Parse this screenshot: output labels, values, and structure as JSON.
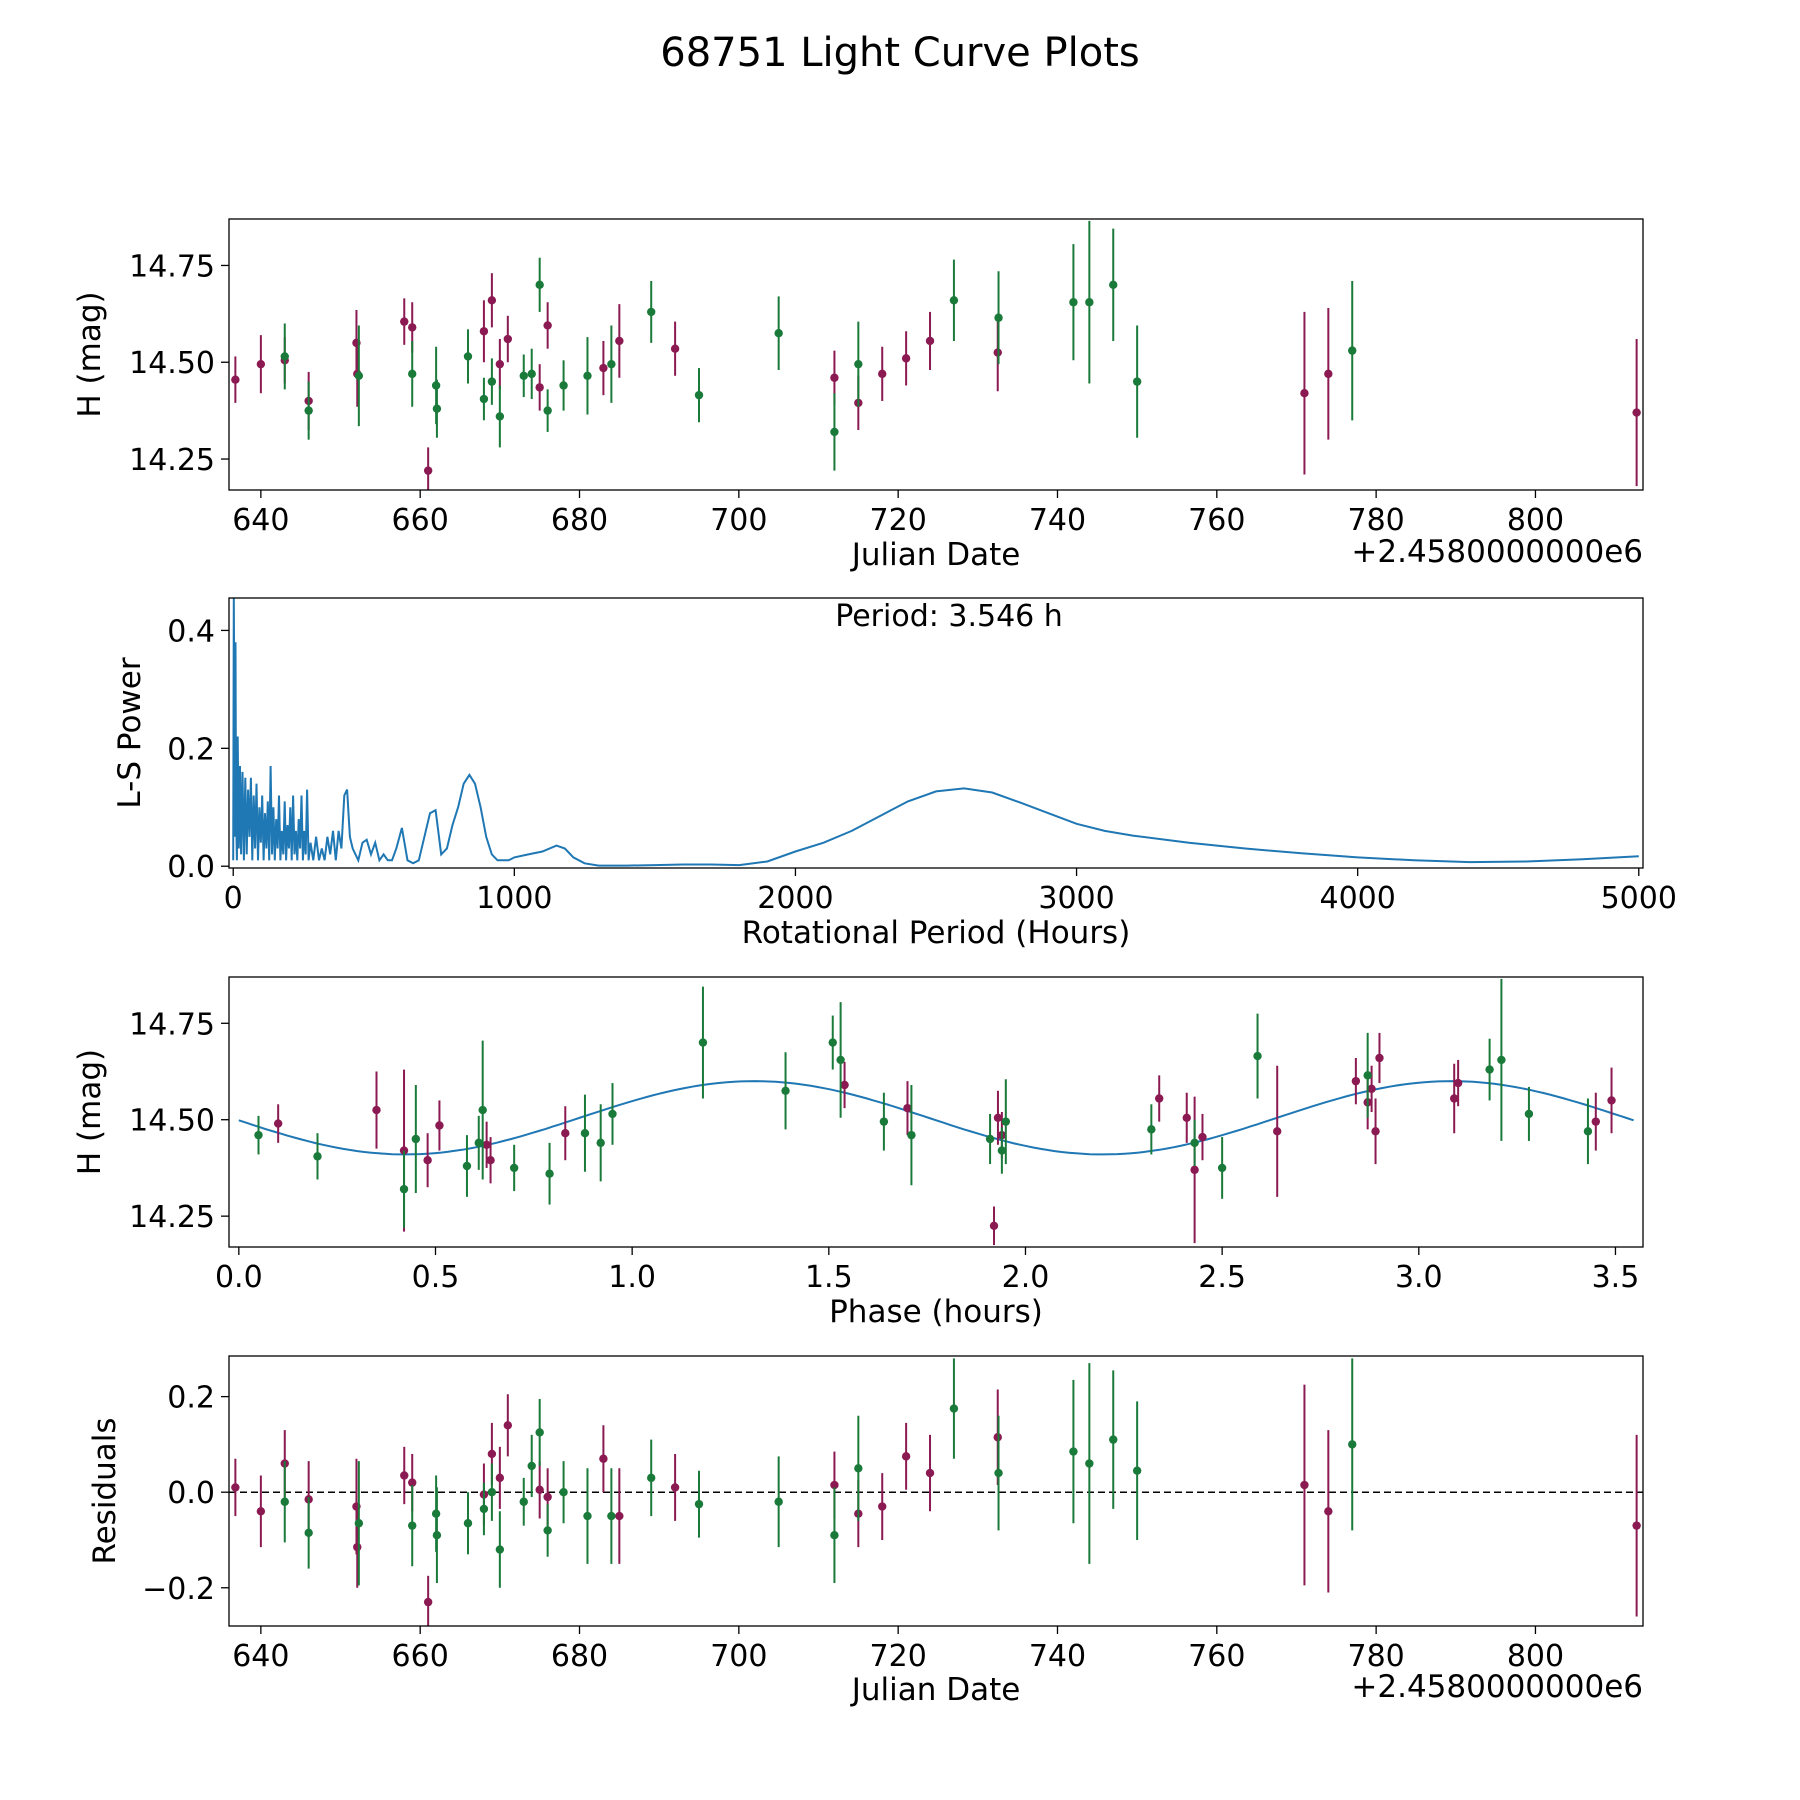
{
  "title": "68751 Light Curve Plots",
  "colors": {
    "magenta": "#8b1a52",
    "green": "#1a7a3a",
    "curve": "#1f77b4",
    "axis": "#000000"
  },
  "chart_data": [
    {
      "id": "lightcurve",
      "type": "scatter",
      "xlabel": "Julian Date",
      "ylabel": "H (mag)",
      "offset_text": "+2.4580000000e6",
      "xlim": [
        636,
        813.5
      ],
      "ylim": [
        14.17,
        14.87
      ],
      "xticks": [
        640,
        660,
        680,
        700,
        720,
        740,
        760,
        780,
        800
      ],
      "xtick_labels": [
        "640",
        "660",
        "680",
        "700",
        "720",
        "740",
        "760",
        "780",
        "800"
      ],
      "yticks": [
        14.25,
        14.5,
        14.75
      ],
      "ytick_labels": [
        "14.25",
        "14.50",
        "14.75"
      ],
      "series": [
        {
          "name": "magenta",
          "color": "#8b1a52",
          "x": [
            636.8,
            640.0,
            643.0,
            646.0,
            652.0,
            652.1,
            658.0,
            659.0,
            661.0,
            668.0,
            669.0,
            670.0,
            671.0,
            675.0,
            676.0,
            683.0,
            685.0,
            692.0,
            712.0,
            715.0,
            718.0,
            721.0,
            724.0,
            732.5,
            771.0,
            774.0,
            812.7
          ],
          "y": [
            14.455,
            14.495,
            14.505,
            14.4,
            14.55,
            14.47,
            14.605,
            14.59,
            14.22,
            14.58,
            14.66,
            14.495,
            14.56,
            14.435,
            14.595,
            14.485,
            14.555,
            14.535,
            14.46,
            14.395,
            14.47,
            14.51,
            14.555,
            14.525,
            14.42,
            14.47,
            14.37
          ],
          "err": [
            0.06,
            0.075,
            0.06,
            0.075,
            0.085,
            0.085,
            0.06,
            0.065,
            0.06,
            0.08,
            0.07,
            0.065,
            0.06,
            0.06,
            0.06,
            0.07,
            0.095,
            0.07,
            0.07,
            0.07,
            0.07,
            0.07,
            0.075,
            0.1,
            0.21,
            0.17,
            0.19
          ]
        },
        {
          "name": "green",
          "color": "#1a7a3a",
          "x": [
            643.0,
            646.0,
            652.3,
            659.0,
            662.0,
            662.1,
            666.0,
            668.0,
            669.0,
            670.0,
            673.0,
            674.0,
            675.0,
            676.0,
            678.0,
            681.0,
            684.0,
            689.0,
            695.0,
            705.0,
            712.0,
            715.0,
            727.0,
            732.6,
            742.0,
            744.0,
            747.0,
            750.0,
            777.0
          ],
          "y": [
            14.515,
            14.375,
            14.465,
            14.47,
            14.44,
            14.38,
            14.515,
            14.405,
            14.45,
            14.36,
            14.465,
            14.47,
            14.7,
            14.375,
            14.44,
            14.465,
            14.495,
            14.63,
            14.415,
            14.575,
            14.32,
            14.495,
            14.66,
            14.615,
            14.655,
            14.655,
            14.7,
            14.45,
            14.53
          ],
          "err": [
            0.085,
            0.075,
            0.13,
            0.085,
            0.1,
            0.075,
            0.07,
            0.055,
            0.06,
            0.08,
            0.055,
            0.065,
            0.07,
            0.055,
            0.065,
            0.1,
            0.1,
            0.08,
            0.07,
            0.095,
            0.1,
            0.11,
            0.105,
            0.12,
            0.15,
            0.21,
            0.145,
            0.145,
            0.18
          ]
        }
      ]
    },
    {
      "id": "periodogram",
      "type": "line",
      "xlabel": "Rotational Period (Hours)",
      "ylabel": "L-S Power",
      "annotation": "Period: 3.546 h",
      "xlim": [
        -15,
        5015
      ],
      "ylim": [
        -0.003,
        0.455
      ],
      "xticks": [
        0,
        1000,
        2000,
        3000,
        4000,
        5000
      ],
      "xtick_labels": [
        "0",
        "1000",
        "2000",
        "3000",
        "4000",
        "5000"
      ],
      "yticks": [
        0.0,
        0.2,
        0.4
      ],
      "ytick_labels": [
        "0.0",
        "0.2",
        "0.4"
      ],
      "x": [
        0,
        2,
        4,
        6,
        8,
        10,
        13,
        16,
        20,
        24,
        28,
        33,
        38,
        43,
        48,
        53,
        58,
        63,
        68,
        73,
        78,
        83,
        88,
        93,
        98,
        103,
        108,
        113,
        118,
        123,
        128,
        133,
        138,
        143,
        148,
        153,
        158,
        163,
        168,
        173,
        178,
        183,
        188,
        193,
        198,
        203,
        208,
        213,
        218,
        223,
        228,
        233,
        238,
        243,
        248,
        253,
        258,
        263,
        268,
        275,
        285,
        295,
        305,
        315,
        325,
        335,
        345,
        355,
        365,
        375,
        385,
        395,
        405,
        415,
        425,
        435,
        445,
        460,
        475,
        490,
        505,
        520,
        535,
        550,
        565,
        580,
        600,
        620,
        640,
        660,
        680,
        700,
        720,
        740,
        760,
        780,
        800,
        820,
        840,
        860,
        880,
        900,
        920,
        940,
        960,
        980,
        1000,
        1050,
        1100,
        1150,
        1180,
        1210,
        1250,
        1300,
        1350,
        1400,
        1500,
        1600,
        1650,
        1700,
        1800,
        1900,
        2000,
        2100,
        2200,
        2300,
        2400,
        2500,
        2600,
        2700,
        2800,
        2900,
        3000,
        3100,
        3200,
        3400,
        3600,
        3800,
        4000,
        4200,
        4400,
        4600,
        4800,
        5000
      ],
      "y": [
        0.01,
        0.455,
        0.3,
        0.05,
        0.38,
        0.1,
        0.01,
        0.22,
        0.03,
        0.17,
        0.02,
        0.16,
        0.01,
        0.15,
        0.02,
        0.13,
        0.05,
        0.15,
        0.01,
        0.12,
        0.03,
        0.14,
        0.01,
        0.1,
        0.04,
        0.12,
        0.01,
        0.09,
        0.03,
        0.11,
        0.01,
        0.17,
        0.02,
        0.1,
        0.01,
        0.08,
        0.03,
        0.12,
        0.01,
        0.06,
        0.02,
        0.11,
        0.01,
        0.07,
        0.03,
        0.1,
        0.01,
        0.12,
        0.02,
        0.06,
        0.01,
        0.08,
        0.03,
        0.12,
        0.01,
        0.06,
        0.02,
        0.13,
        0.01,
        0.04,
        0.01,
        0.05,
        0.01,
        0.03,
        0.01,
        0.05,
        0.02,
        0.06,
        0.01,
        0.06,
        0.03,
        0.12,
        0.13,
        0.05,
        0.03,
        0.02,
        0.01,
        0.04,
        0.045,
        0.02,
        0.04,
        0.01,
        0.02,
        0.01,
        0.01,
        0.03,
        0.065,
        0.01,
        0.005,
        0.01,
        0.05,
        0.09,
        0.095,
        0.02,
        0.03,
        0.07,
        0.1,
        0.14,
        0.155,
        0.14,
        0.1,
        0.05,
        0.02,
        0.01,
        0.01,
        0.01,
        0.015,
        0.02,
        0.025,
        0.035,
        0.03,
        0.015,
        0.005,
        0.001,
        0.001,
        0.001,
        0.002,
        0.003,
        0.003,
        0.003,
        0.002,
        0.008,
        0.025,
        0.04,
        0.06,
        0.085,
        0.11,
        0.127,
        0.132,
        0.125,
        0.108,
        0.09,
        0.072,
        0.06,
        0.052,
        0.04,
        0.03,
        0.022,
        0.015,
        0.01,
        0.007,
        0.008,
        0.012,
        0.017
      ]
    },
    {
      "id": "phased",
      "type": "scatter",
      "xlabel": "Phase (hours)",
      "ylabel": "H (mag)",
      "xlim": [
        -0.025,
        3.57
      ],
      "ylim": [
        14.17,
        14.87
      ],
      "xticks": [
        0.0,
        0.5,
        1.0,
        1.5,
        2.0,
        2.5,
        3.0,
        3.5
      ],
      "xtick_labels": [
        "0.0",
        "0.5",
        "1.0",
        "1.5",
        "2.0",
        "2.5",
        "3.0",
        "3.5"
      ],
      "yticks": [
        14.25,
        14.5,
        14.75
      ],
      "ytick_labels": [
        "14.25",
        "14.50",
        "14.75"
      ],
      "fit": {
        "mean": 14.505,
        "amp": 0.095,
        "period_h": 1.773,
        "phase_peak": 1.31
      },
      "series": [
        {
          "name": "magenta",
          "color": "#8b1a52",
          "x": [
            0.1,
            0.35,
            0.42,
            0.48,
            0.51,
            0.63,
            0.64,
            0.83,
            1.54,
            1.7,
            1.92,
            1.93,
            1.94,
            2.34,
            2.41,
            2.43,
            2.45,
            2.64,
            2.84,
            2.87,
            2.88,
            2.89,
            2.9,
            3.09,
            3.1,
            3.45,
            3.49
          ],
          "y": [
            14.49,
            14.525,
            14.42,
            14.395,
            14.485,
            14.435,
            14.395,
            14.465,
            14.59,
            14.53,
            14.225,
            14.505,
            14.46,
            14.555,
            14.505,
            14.37,
            14.455,
            14.47,
            14.6,
            14.545,
            14.58,
            14.47,
            14.66,
            14.555,
            14.595,
            14.495,
            14.55
          ],
          "err": [
            0.05,
            0.1,
            0.21,
            0.07,
            0.065,
            0.06,
            0.06,
            0.07,
            0.06,
            0.07,
            0.05,
            0.07,
            0.06,
            0.06,
            0.065,
            0.19,
            0.06,
            0.17,
            0.06,
            0.07,
            0.06,
            0.085,
            0.065,
            0.09,
            0.06,
            0.075,
            0.085
          ]
        },
        {
          "name": "green",
          "color": "#1a7a3a",
          "x": [
            0.05,
            0.2,
            0.42,
            0.45,
            0.58,
            0.61,
            0.62,
            0.7,
            0.79,
            0.88,
            0.92,
            0.95,
            1.18,
            1.39,
            1.51,
            1.53,
            1.64,
            1.71,
            1.91,
            1.94,
            1.95,
            2.32,
            2.43,
            2.5,
            2.59,
            2.87,
            3.18,
            3.21,
            3.28,
            3.43
          ],
          "y": [
            14.46,
            14.405,
            14.32,
            14.45,
            14.38,
            14.44,
            14.525,
            14.375,
            14.36,
            14.465,
            14.44,
            14.515,
            14.7,
            14.575,
            14.7,
            14.655,
            14.495,
            14.46,
            14.45,
            14.42,
            14.495,
            14.475,
            14.44,
            14.375,
            14.665,
            14.615,
            14.63,
            14.655,
            14.515,
            14.47
          ],
          "err": [
            0.05,
            0.06,
            0.1,
            0.14,
            0.08,
            0.07,
            0.18,
            0.06,
            0.08,
            0.1,
            0.1,
            0.08,
            0.145,
            0.1,
            0.07,
            0.15,
            0.075,
            0.13,
            0.065,
            0.06,
            0.11,
            0.065,
            0.06,
            0.08,
            0.11,
            0.11,
            0.08,
            0.21,
            0.07,
            0.085
          ]
        }
      ]
    },
    {
      "id": "residuals",
      "type": "scatter",
      "xlabel": "Julian Date",
      "ylabel": "Residuals",
      "offset_text": "+2.4580000000e6",
      "xlim": [
        636,
        813.5
      ],
      "ylim": [
        -0.28,
        0.285
      ],
      "xticks": [
        640,
        660,
        680,
        700,
        720,
        740,
        760,
        780,
        800
      ],
      "xtick_labels": [
        "640",
        "660",
        "680",
        "700",
        "720",
        "740",
        "760",
        "780",
        "800"
      ],
      "yticks": [
        -0.2,
        0.0,
        0.2
      ],
      "ytick_labels": [
        "−0.2",
        "0.0",
        "0.2"
      ],
      "baseline": 0.0,
      "series": [
        {
          "name": "magenta",
          "color": "#8b1a52",
          "x": [
            636.8,
            640.0,
            643.0,
            646.0,
            652.0,
            652.1,
            658.0,
            659.0,
            661.0,
            668.0,
            669.0,
            670.0,
            671.0,
            675.0,
            676.0,
            683.0,
            685.0,
            692.0,
            712.0,
            715.0,
            718.0,
            721.0,
            724.0,
            732.5,
            771.0,
            774.0,
            812.7
          ],
          "y": [
            0.01,
            -0.04,
            0.06,
            -0.015,
            -0.03,
            -0.115,
            0.035,
            0.02,
            -0.23,
            -0.005,
            0.08,
            0.03,
            0.14,
            0.005,
            -0.01,
            0.07,
            -0.05,
            0.01,
            0.015,
            -0.045,
            -0.03,
            0.075,
            0.04,
            0.115,
            0.015,
            -0.04,
            -0.07
          ],
          "err": [
            0.06,
            0.075,
            0.07,
            0.08,
            0.1,
            0.085,
            0.06,
            0.06,
            0.055,
            0.065,
            0.065,
            0.065,
            0.065,
            0.06,
            0.06,
            0.07,
            0.1,
            0.07,
            0.07,
            0.07,
            0.07,
            0.07,
            0.08,
            0.1,
            0.21,
            0.17,
            0.19
          ]
        },
        {
          "name": "green",
          "color": "#1a7a3a",
          "x": [
            643.0,
            646.0,
            652.3,
            659.0,
            662.0,
            662.1,
            666.0,
            668.0,
            669.0,
            670.0,
            673.0,
            674.0,
            675.0,
            676.0,
            678.0,
            681.0,
            684.0,
            689.0,
            695.0,
            705.0,
            712.0,
            715.0,
            727.0,
            732.6,
            742.0,
            744.0,
            747.0,
            750.0,
            777.0
          ],
          "y": [
            -0.02,
            -0.085,
            -0.065,
            -0.07,
            -0.045,
            -0.09,
            -0.065,
            -0.035,
            0.0,
            -0.12,
            -0.02,
            0.055,
            0.125,
            -0.08,
            0.0,
            -0.05,
            -0.05,
            0.03,
            -0.025,
            -0.02,
            -0.09,
            0.05,
            0.175,
            0.04,
            0.085,
            0.06,
            0.11,
            0.045,
            0.1
          ],
          "err": [
            0.085,
            0.075,
            0.13,
            0.085,
            0.08,
            0.1,
            0.065,
            0.055,
            0.06,
            0.08,
            0.05,
            0.065,
            0.07,
            0.055,
            0.065,
            0.1,
            0.1,
            0.08,
            0.07,
            0.095,
            0.1,
            0.11,
            0.105,
            0.12,
            0.15,
            0.21,
            0.145,
            0.145,
            0.18
          ]
        }
      ]
    }
  ]
}
